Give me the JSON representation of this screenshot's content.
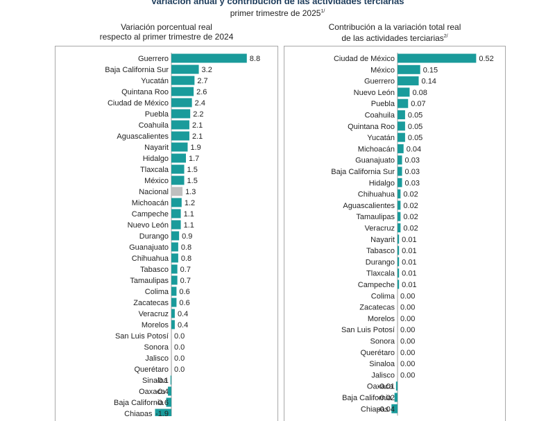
{
  "title": "Variación anual y contribución de las actividades terciarias",
  "subtitle": "primer trimestre de 2025",
  "subtitle_sup": "1/",
  "colors": {
    "bar": "#1a9b9b",
    "highlight": "#bfbfbf",
    "axis": "#9a9a9a"
  },
  "chart_data": [
    {
      "type": "bar",
      "orientation": "horizontal",
      "title_lines": [
        "Variación porcentual real",
        "respecto al primer trimestre de 2024"
      ],
      "highlight": "Nacional",
      "categories": [
        "Guerrero",
        "Baja California Sur",
        "Yucatán",
        "Quintana Roo",
        "Ciudad de México",
        "Puebla",
        "Coahuila",
        "Aguascalientes",
        "Nayarit",
        "Hidalgo",
        "Tlaxcala",
        "México",
        "Nacional",
        "Michoacán",
        "Campeche",
        "Nuevo León",
        "Durango",
        "Guanajuato",
        "Chihuahua",
        "Tabasco",
        "Tamaulipas",
        "Colima",
        "Zacatecas",
        "Veracruz",
        "Morelos",
        "San Luis Potosí",
        "Sonora",
        "Jalisco",
        "Querétaro",
        "Sinaloa",
        "Oaxaca",
        "Baja California",
        "Chiapas"
      ],
      "values": [
        8.8,
        3.2,
        2.7,
        2.6,
        2.4,
        2.2,
        2.1,
        2.1,
        1.9,
        1.7,
        1.5,
        1.5,
        1.3,
        1.2,
        1.1,
        1.1,
        0.9,
        0.8,
        0.8,
        0.7,
        0.7,
        0.6,
        0.6,
        0.4,
        0.4,
        0.0,
        0.0,
        0.0,
        0.0,
        -0.1,
        -0.4,
        -0.6,
        -1.9
      ],
      "labels": [
        "8.8",
        "3.2",
        "2.7",
        "2.6",
        "2.4",
        "2.2",
        "2.1",
        "2.1",
        "1.9",
        "1.7",
        "1.5",
        "1.5",
        "1.3",
        "1.2",
        "1.1",
        "1.1",
        "0.9",
        "0.8",
        "0.8",
        "0.7",
        "0.7",
        "0.6",
        "0.6",
        "0.4",
        "0.4",
        "0.0",
        "0.0",
        "0.0",
        "0.0",
        "-0.1",
        "-0.4",
        "-0.6",
        "-1.9"
      ]
    },
    {
      "type": "bar",
      "orientation": "horizontal",
      "title_lines": [
        "Contribución a la variación total real",
        "de las actividades terciarias"
      ],
      "title_sup": "2/",
      "categories": [
        "Ciudad de México",
        "México",
        "Guerrero",
        "Nuevo León",
        "Puebla",
        "Coahuila",
        "Quintana Roo",
        "Yucatán",
        "Michoacán",
        "Guanajuato",
        "Baja California Sur",
        "Hidalgo",
        "Chihuahua",
        "Aguascalientes",
        "Tamaulipas",
        "Veracruz",
        "Nayarit",
        "Tabasco",
        "Durango",
        "Tlaxcala",
        "Campeche",
        "Colima",
        "Zacatecas",
        "Morelos",
        "San Luis Potosí",
        "Sonora",
        "Querétaro",
        "Sinaloa",
        "Jalisco",
        "Oaxaca",
        "Baja California",
        "Chiapas"
      ],
      "values": [
        0.52,
        0.15,
        0.14,
        0.08,
        0.07,
        0.05,
        0.05,
        0.05,
        0.04,
        0.03,
        0.03,
        0.03,
        0.02,
        0.02,
        0.02,
        0.02,
        0.01,
        0.01,
        0.01,
        0.01,
        0.01,
        0.0,
        0.0,
        0.0,
        0.0,
        0.0,
        0.0,
        0.0,
        0.0,
        -0.01,
        -0.02,
        -0.04
      ],
      "labels": [
        "0.52",
        "0.15",
        "0.14",
        "0.08",
        "0.07",
        "0.05",
        "0.05",
        "0.05",
        "0.04",
        "0.03",
        "0.03",
        "0.03",
        "0.02",
        "0.02",
        "0.02",
        "0.02",
        "0.01",
        "0.01",
        "0.01",
        "0.01",
        "0.01",
        "0.00",
        "0.00",
        "0.00",
        "0.00",
        "0.00",
        "0.00",
        "0.00",
        "0.00",
        "-0.01",
        "-0.02",
        "-0.04"
      ]
    }
  ]
}
